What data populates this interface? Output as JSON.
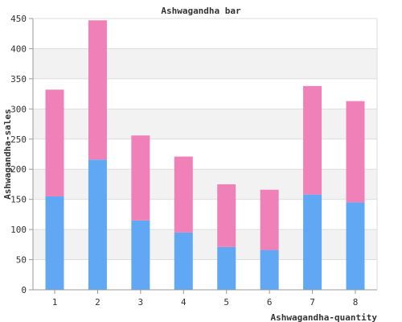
{
  "chart_data": {
    "type": "bar",
    "stacked": true,
    "title": "Ashwagandha bar",
    "xlabel": "Ashwagandha-quantity",
    "ylabel": "Ashwagandha-sales",
    "categories": [
      "1",
      "2",
      "3",
      "4",
      "5",
      "6",
      "7",
      "8"
    ],
    "series": [
      {
        "color": "#60a8f4",
        "values": [
          155,
          216,
          115,
          95,
          71,
          66,
          158,
          145
        ]
      },
      {
        "color": "#f080b8",
        "values": [
          177,
          231,
          141,
          126,
          104,
          100,
          180,
          168
        ]
      }
    ],
    "ylim": [
      0,
      450
    ],
    "yticks": [
      0,
      50,
      100,
      150,
      200,
      250,
      300,
      350,
      400,
      450
    ],
    "grid": true,
    "legend": "none"
  }
}
